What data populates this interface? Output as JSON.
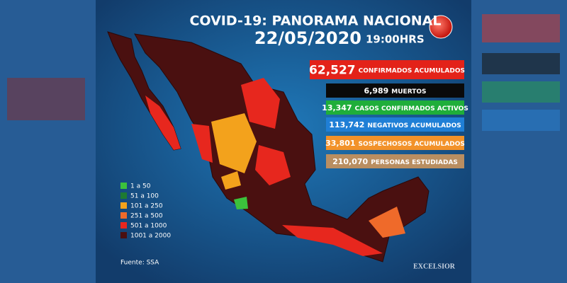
{
  "header": {
    "title": "COVID-19: PANORAMA NACIONAL",
    "date": "22/05/2020",
    "time": "19:00HRS"
  },
  "stats": [
    {
      "number": "62,527",
      "label": "CONFIRMADOS ACUMULADOS",
      "color": "#e32219"
    },
    {
      "number": "6,989",
      "label": "MUERTOS",
      "color": "#0a0a0a"
    },
    {
      "number": "13,347",
      "label": "CASOS CONFIRMADOS ACTIVOS",
      "color": "#1fae3a"
    },
    {
      "number": "113,742",
      "label": "NEGATIVOS ACUMULADOS",
      "color": "#1f7fd6"
    },
    {
      "number": "33,801",
      "label": "SOSPECHOSOS ACUMULADOS",
      "color": "#f2922a"
    },
    {
      "number": "210,070",
      "label": "PERSONAS ESTUDIADAS",
      "color": "#b98e61"
    }
  ],
  "legend": [
    {
      "label": "1 a 50",
      "color": "#3cc23c"
    },
    {
      "label": "51 a 100",
      "color": "#1e7a32"
    },
    {
      "label": "101 a 250",
      "color": "#f3a21c"
    },
    {
      "label": "251 a 500",
      "color": "#ef6a2a"
    },
    {
      "label": "501 a 1000",
      "color": "#e7271e"
    },
    {
      "label": "1001 a 2000",
      "color": "#4a1010"
    }
  ],
  "footer": {
    "source": "Fuente: SSA",
    "brand": "EXCELSIOR"
  }
}
